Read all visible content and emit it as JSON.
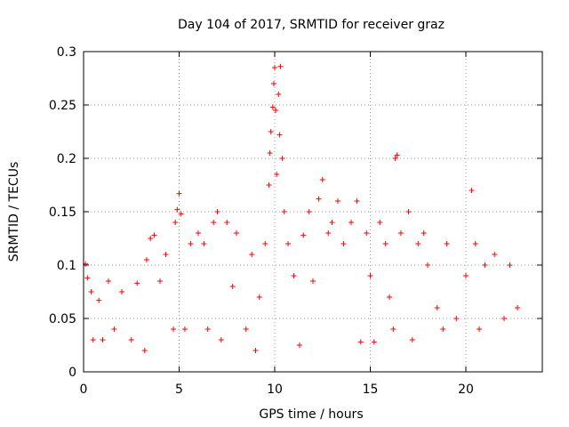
{
  "chart_data": {
    "type": "scatter",
    "title": "Day 104 of 2017, SRMTID for receiver graz",
    "xlabel": "GPS time / hours",
    "ylabel": "SRMTID / TECUs",
    "xlim": [
      0,
      24
    ],
    "ylim": [
      0,
      0.3
    ],
    "x_ticks": [
      0,
      5,
      10,
      15,
      20
    ],
    "x_tick_labels": [
      "0",
      "5",
      "10",
      "15",
      "20"
    ],
    "y_ticks": [
      0,
      0.05,
      0.1,
      0.15,
      0.2,
      0.25,
      0.3
    ],
    "y_tick_labels": [
      "0",
      "0.05",
      "0.1",
      "0.15",
      "0.2",
      "0.25",
      "0.3"
    ],
    "grid": true,
    "marker": "+",
    "color": "#ff0000",
    "series": [
      {
        "name": "SRMTID",
        "points": [
          [
            0.1,
            0.101
          ],
          [
            0.2,
            0.088
          ],
          [
            0.4,
            0.075
          ],
          [
            0.5,
            0.03
          ],
          [
            0.8,
            0.067
          ],
          [
            1.0,
            0.03
          ],
          [
            1.3,
            0.085
          ],
          [
            1.6,
            0.04
          ],
          [
            2.0,
            0.075
          ],
          [
            2.5,
            0.03
          ],
          [
            2.8,
            0.083
          ],
          [
            3.2,
            0.02
          ],
          [
            3.3,
            0.105
          ],
          [
            3.5,
            0.125
          ],
          [
            3.7,
            0.128
          ],
          [
            4.0,
            0.085
          ],
          [
            4.3,
            0.11
          ],
          [
            4.7,
            0.04
          ],
          [
            4.8,
            0.14
          ],
          [
            4.9,
            0.152
          ],
          [
            5.0,
            0.167
          ],
          [
            5.1,
            0.148
          ],
          [
            5.3,
            0.04
          ],
          [
            5.6,
            0.12
          ],
          [
            6.0,
            0.13
          ],
          [
            6.3,
            0.12
          ],
          [
            6.5,
            0.04
          ],
          [
            6.8,
            0.14
          ],
          [
            7.0,
            0.15
          ],
          [
            7.2,
            0.03
          ],
          [
            7.5,
            0.14
          ],
          [
            7.8,
            0.08
          ],
          [
            8.0,
            0.13
          ],
          [
            8.5,
            0.04
          ],
          [
            8.8,
            0.11
          ],
          [
            9.0,
            0.02
          ],
          [
            9.2,
            0.07
          ],
          [
            9.5,
            0.12
          ],
          [
            9.7,
            0.175
          ],
          [
            9.75,
            0.205
          ],
          [
            9.8,
            0.225
          ],
          [
            9.9,
            0.248
          ],
          [
            9.95,
            0.27
          ],
          [
            10.0,
            0.285
          ],
          [
            10.05,
            0.245
          ],
          [
            10.1,
            0.185
          ],
          [
            10.2,
            0.26
          ],
          [
            10.25,
            0.222
          ],
          [
            10.3,
            0.286
          ],
          [
            10.4,
            0.2
          ],
          [
            10.5,
            0.15
          ],
          [
            10.7,
            0.12
          ],
          [
            11.0,
            0.09
          ],
          [
            11.3,
            0.025
          ],
          [
            11.5,
            0.128
          ],
          [
            11.8,
            0.15
          ],
          [
            12.0,
            0.085
          ],
          [
            12.3,
            0.162
          ],
          [
            12.5,
            0.18
          ],
          [
            12.8,
            0.13
          ],
          [
            13.0,
            0.14
          ],
          [
            13.3,
            0.16
          ],
          [
            13.6,
            0.12
          ],
          [
            14.0,
            0.14
          ],
          [
            14.3,
            0.16
          ],
          [
            14.5,
            0.028
          ],
          [
            14.8,
            0.13
          ],
          [
            15.0,
            0.09
          ],
          [
            15.2,
            0.028
          ],
          [
            15.5,
            0.14
          ],
          [
            15.8,
            0.12
          ],
          [
            16.0,
            0.07
          ],
          [
            16.2,
            0.04
          ],
          [
            16.3,
            0.2
          ],
          [
            16.4,
            0.203
          ],
          [
            16.6,
            0.13
          ],
          [
            17.0,
            0.15
          ],
          [
            17.2,
            0.03
          ],
          [
            17.5,
            0.12
          ],
          [
            17.8,
            0.13
          ],
          [
            18.0,
            0.1
          ],
          [
            18.5,
            0.06
          ],
          [
            18.8,
            0.04
          ],
          [
            19.0,
            0.12
          ],
          [
            19.5,
            0.05
          ],
          [
            20.0,
            0.09
          ],
          [
            20.3,
            0.17
          ],
          [
            20.5,
            0.12
          ],
          [
            20.7,
            0.04
          ],
          [
            21.0,
            0.1
          ],
          [
            21.5,
            0.11
          ],
          [
            22.0,
            0.05
          ],
          [
            22.3,
            0.1
          ],
          [
            22.7,
            0.06
          ]
        ]
      }
    ]
  }
}
